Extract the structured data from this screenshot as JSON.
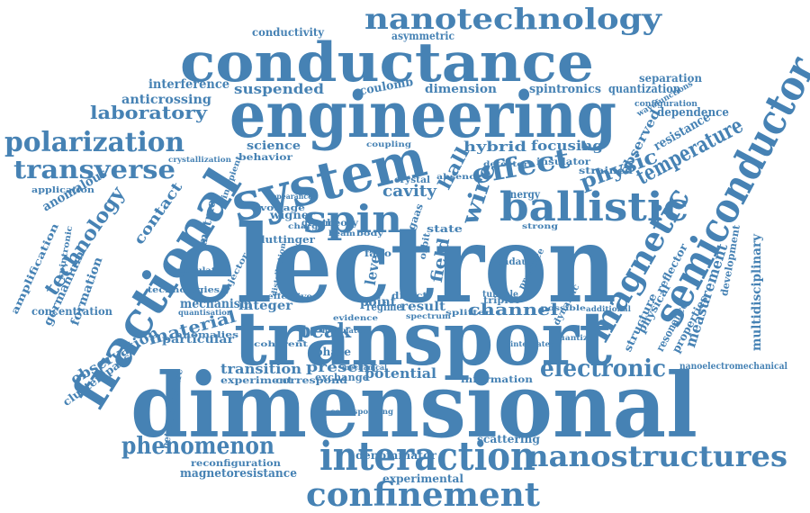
{
  "color": "#4682b4",
  "words": [
    {
      "text": "electron",
      "weight": 100
    },
    {
      "text": "dimensional",
      "weight": 90
    },
    {
      "text": "transport",
      "weight": 82
    },
    {
      "text": "engineering",
      "weight": 70
    },
    {
      "text": "conductance",
      "weight": 68
    },
    {
      "text": "system",
      "weight": 60
    },
    {
      "text": "fractional",
      "weight": 58
    },
    {
      "text": "semiconductor",
      "weight": 52
    },
    {
      "text": "ballistic",
      "weight": 50
    },
    {
      "text": "magnetic",
      "weight": 46
    },
    {
      "text": "spin",
      "weight": 46
    },
    {
      "text": "interaction",
      "weight": 44
    },
    {
      "text": "nanotechnology",
      "weight": 40
    },
    {
      "text": "confinement",
      "weight": 40
    },
    {
      "text": "nanostructures",
      "weight": 38
    },
    {
      "text": "polarization",
      "weight": 34
    },
    {
      "text": "transverse",
      "weight": 34
    },
    {
      "text": "effect",
      "weight": 34
    },
    {
      "text": "electronic",
      "weight": 32
    },
    {
      "text": "phenomenon",
      "weight": 30
    },
    {
      "text": "temperature",
      "weight": 28
    },
    {
      "text": "wire",
      "weight": 28
    },
    {
      "text": "technology",
      "weight": 26
    },
    {
      "text": "laboratory",
      "weight": 24
    },
    {
      "text": "physic",
      "weight": 24
    },
    {
      "text": "peak",
      "weight": 24
    },
    {
      "text": "material",
      "weight": 22
    },
    {
      "text": "channel",
      "weight": 22
    },
    {
      "text": "measurement",
      "weight": 22
    },
    {
      "text": "observation",
      "weight": 20
    },
    {
      "text": "cavity",
      "weight": 20
    },
    {
      "text": "contact",
      "weight": 20
    },
    {
      "text": "hall",
      "weight": 20
    },
    {
      "text": "field",
      "weight": 20
    },
    {
      "text": "suspended",
      "weight": 18
    },
    {
      "text": "focusing",
      "weight": 18
    },
    {
      "text": "hybrid",
      "weight": 18
    },
    {
      "text": "transition",
      "weight": 18
    },
    {
      "text": "present",
      "weight": 18
    },
    {
      "text": "potential",
      "weight": 18
    },
    {
      "text": "multidisciplinary",
      "weight": 17
    },
    {
      "text": "level",
      "weight": 17
    },
    {
      "text": "integer",
      "weight": 16
    },
    {
      "text": "result",
      "weight": 16
    },
    {
      "text": "mechanism",
      "weight": 16
    },
    {
      "text": "observed",
      "weight": 16
    },
    {
      "text": "resistance",
      "weight": 16
    },
    {
      "text": "anomalous",
      "weight": 16
    },
    {
      "text": "point",
      "weight": 16
    },
    {
      "text": "interference",
      "weight": 15
    },
    {
      "text": "anticrossing",
      "weight": 15
    },
    {
      "text": "dimension",
      "weight": 15
    },
    {
      "text": "spintronics",
      "weight": 15
    },
    {
      "text": "quantization",
      "weight": 15
    },
    {
      "text": "science",
      "weight": 15
    },
    {
      "text": "dependence",
      "weight": 14
    },
    {
      "text": "matmes",
      "weight": 14
    },
    {
      "text": "formation",
      "weight": 14
    },
    {
      "text": "regime",
      "weight": 14
    },
    {
      "text": "magnetoresistance",
      "weight": 14
    },
    {
      "text": "coulomb",
      "weight": 14
    },
    {
      "text": "germanium",
      "weight": 13
    },
    {
      "text": "energy",
      "weight": 13
    },
    {
      "text": "phase",
      "weight": 13
    },
    {
      "text": "denominator",
      "weight": 13
    },
    {
      "text": "experimental",
      "weight": 12
    },
    {
      "text": "scattering",
      "weight": 12
    },
    {
      "text": "resonance",
      "weight": 12
    },
    {
      "text": "properties",
      "weight": 12
    },
    {
      "text": "structure",
      "weight": 12
    },
    {
      "text": "reflector",
      "weight": 12
    },
    {
      "text": "clusterspacs",
      "weight": 12
    },
    {
      "text": "particular",
      "weight": 12
    },
    {
      "text": "conductivity",
      "weight": 12
    },
    {
      "text": "asymmetric",
      "weight": 12
    },
    {
      "text": "separation",
      "weight": 12
    },
    {
      "text": "concentration",
      "weight": 12
    },
    {
      "text": "amplification",
      "weight": 11
    },
    {
      "text": "heterostructure",
      "weight": 11
    },
    {
      "text": "development",
      "weight": 11
    },
    {
      "text": "nanoelectromechanical",
      "weight": 10
    },
    {
      "text": "reconfiguration",
      "weight": 10
    },
    {
      "text": "physical",
      "weight": 12
    },
    {
      "text": "exchange",
      "weight": 11
    },
    {
      "text": "wigner",
      "weight": 12
    },
    {
      "text": "luttinger",
      "weight": 11
    },
    {
      "text": "crystal",
      "weight": 10
    },
    {
      "text": "gaas",
      "weight": 11
    },
    {
      "text": "landau",
      "weight": 10
    },
    {
      "text": "tunable",
      "weight": 10
    },
    {
      "text": "triplet",
      "weight": 10
    },
    {
      "text": "direct",
      "weight": 10
    },
    {
      "text": "fano",
      "weight": 10
    },
    {
      "text": "orbit",
      "weight": 10
    },
    {
      "text": "state",
      "weight": 11
    },
    {
      "text": "ground",
      "weight": 10
    },
    {
      "text": "theory",
      "weight": 10
    },
    {
      "text": "information",
      "weight": 10
    },
    {
      "text": "experiment",
      "weight": 10
    },
    {
      "text": "correspond",
      "weight": 10
    },
    {
      "text": "technologies",
      "weight": 10
    },
    {
      "text": "anomalies",
      "weight": 10
    },
    {
      "text": "dynamic",
      "weight": 10
    },
    {
      "text": "strained",
      "weight": 10
    },
    {
      "text": "insulator",
      "weight": 10
    },
    {
      "text": "spintronic",
      "weight": 10
    },
    {
      "text": "voltage",
      "weight": 10
    },
    {
      "text": "application",
      "weight": 10
    },
    {
      "text": "configuration",
      "weight": 10
    },
    {
      "text": "wavefunctions",
      "weight": 10
    },
    {
      "text": "behavior",
      "weight": 10
    },
    {
      "text": "presence",
      "weight": 10
    },
    {
      "text": "injector",
      "weight": 10
    },
    {
      "text": "incipient",
      "weight": 10
    },
    {
      "text": "quantisation",
      "weight": 9
    },
    {
      "text": "additional",
      "weight": 9
    },
    {
      "text": "coherent",
      "weight": 9
    },
    {
      "text": "integrated",
      "weight": 9
    },
    {
      "text": "quantized",
      "weight": 9
    },
    {
      "text": "splitter",
      "weight": 9
    },
    {
      "text": "evidence",
      "weight": 9
    },
    {
      "text": "spectrum",
      "weight": 9
    },
    {
      "text": "beam",
      "weight": 9
    },
    {
      "text": "body",
      "weight": 9
    },
    {
      "text": "coupling",
      "weight": 9
    },
    {
      "text": "detector",
      "weight": 9
    },
    {
      "text": "absence",
      "weight": 9
    },
    {
      "text": "population",
      "weight": 9
    },
    {
      "text": "effective",
      "weight": 9
    },
    {
      "text": "possible",
      "weight": 9
    },
    {
      "text": "crystallization",
      "weight": 9
    },
    {
      "text": "corresponding",
      "weight": 9
    },
    {
      "text": "mechanical",
      "weight": 9
    },
    {
      "text": "strong",
      "weight": 9
    },
    {
      "text": "charge",
      "weight": 9
    },
    {
      "text": "appearance",
      "weight": 9
    },
    {
      "text": "distribution",
      "weight": 9
    },
    {
      "text": "modulated",
      "weight": 9
    }
  ]
}
